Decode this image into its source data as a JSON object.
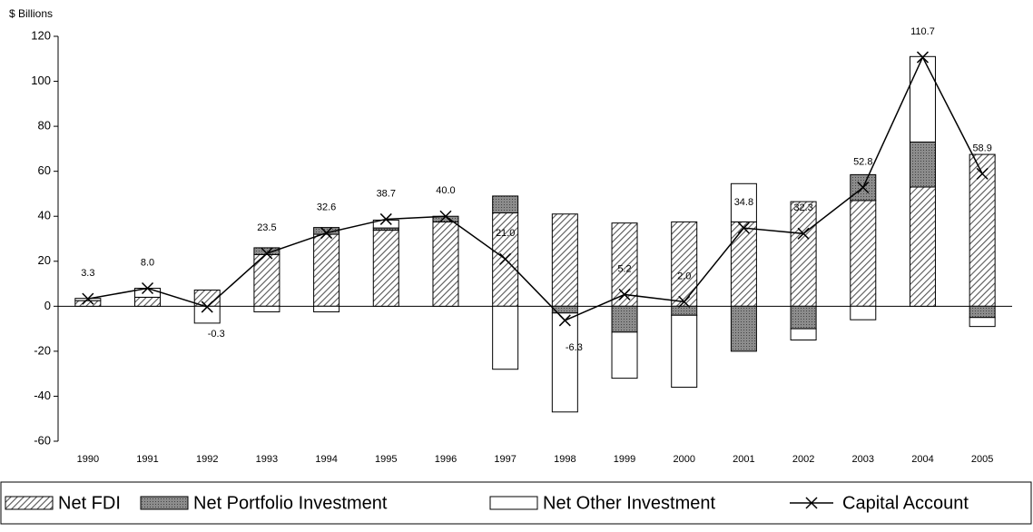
{
  "chart_data": {
    "type": "bar",
    "y_label": "$ Billions",
    "categories": [
      "1990",
      "1991",
      "1992",
      "1993",
      "1994",
      "1995",
      "1996",
      "1997",
      "1998",
      "1999",
      "2000",
      "2001",
      "2002",
      "2003",
      "2004",
      "2005"
    ],
    "series": [
      {
        "name": "Net FDI",
        "color": "#555555",
        "values": [
          2.5,
          4,
          7.2,
          23,
          32,
          33.8,
          37.5,
          41.5,
          41,
          37,
          37.5,
          37.5,
          46.5,
          47,
          53,
          67.5
        ]
      },
      {
        "name": "Net Portfolio Investment",
        "color": "#8c8c8c",
        "values": [
          0,
          0,
          0,
          3,
          3,
          1,
          2.5,
          7.5,
          -3,
          -11.5,
          -4,
          -20,
          -10,
          11.5,
          20,
          -5
        ]
      },
      {
        "name": "Net Other Investment",
        "color": "#ffffff",
        "values": [
          1,
          4,
          -7.5,
          -2.5,
          -2.5,
          3.5,
          0,
          -28,
          -44,
          -20.5,
          -32,
          17,
          -5,
          -6,
          38,
          -4
        ]
      },
      {
        "name": "Capital Account",
        "type": "line",
        "color": "#000000",
        "values": [
          3.3,
          8,
          -0.3,
          23.5,
          32.6,
          38.7,
          40,
          21,
          -6.3,
          5.2,
          2,
          34.8,
          32.3,
          52.8,
          110.7,
          58.9
        ],
        "value_labels": [
          "3.3",
          "8.0",
          "-0.3",
          "23.5",
          "32.6",
          "38.7",
          "40.0",
          "21.0",
          "-6.3",
          "5.2",
          "2.0",
          "34.8",
          "32.3",
          "52.8",
          "110.7",
          "58.9"
        ]
      }
    ],
    "ylim": [
      -60,
      120
    ],
    "yticks": [
      -60,
      -40,
      -20,
      0,
      20,
      40,
      60,
      80,
      100,
      120
    ],
    "grid": false
  }
}
